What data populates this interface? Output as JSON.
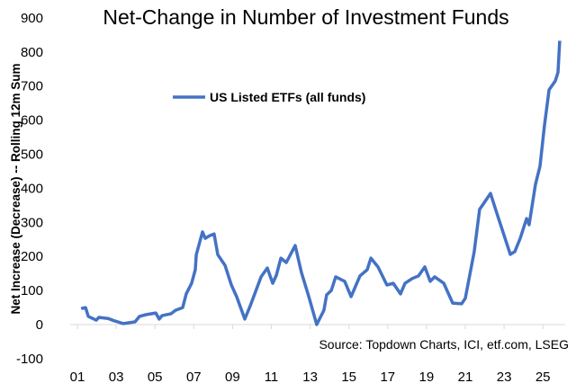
{
  "chart_data": {
    "type": "line",
    "title": "Net-Change in Number of Investment Funds",
    "ylabel": "Net Increase (Decrease) -- Rolling 12m Sum",
    "xlabel": "",
    "source": "Source: Topdown Charts, ICI, etf.com, LSEG",
    "ylim": [
      -100,
      900
    ],
    "yticks": [
      "-100",
      "0",
      "100",
      "200",
      "300",
      "400",
      "500",
      "600",
      "700",
      "800",
      "900"
    ],
    "xlim": [
      2001,
      2025.9
    ],
    "xtick_labels": [
      "01",
      "03",
      "05",
      "07",
      "09",
      "11",
      "13",
      "15",
      "17",
      "19",
      "21",
      "23",
      "25"
    ],
    "grid": false,
    "legend_placement": "top-left",
    "color": "#4472C4",
    "series": [
      {
        "name": "US Listed ETFs (all funds)",
        "x": [
          2001.19,
          2001.42,
          2001.56,
          2001.97,
          2002.11,
          2002.58,
          2002.9,
          2003.37,
          2003.97,
          2004.2,
          2004.53,
          2005.04,
          2005.22,
          2005.36,
          2005.83,
          2006.06,
          2006.43,
          2006.61,
          2006.89,
          2007.08,
          2007.13,
          2007.45,
          2007.59,
          2007.82,
          2008.05,
          2008.24,
          2008.61,
          2008.94,
          2009.21,
          2009.63,
          2009.91,
          2010.47,
          2010.79,
          2011.07,
          2011.26,
          2011.49,
          2011.77,
          2012.23,
          2012.55,
          2012.93,
          2013.34,
          2013.71,
          2013.85,
          2014.09,
          2014.32,
          2014.78,
          2015.11,
          2015.57,
          2015.94,
          2016.13,
          2016.5,
          2016.96,
          2017.29,
          2017.66,
          2017.89,
          2018.26,
          2018.59,
          2018.91,
          2019.19,
          2019.42,
          2019.89,
          2020.35,
          2020.81,
          2021.0,
          2021.46,
          2021.74,
          2022.3,
          2022.67,
          2023.32,
          2023.55,
          2023.83,
          2024.16,
          2024.29,
          2024.62,
          2024.85,
          2025.08,
          2025.32,
          2025.64,
          2025.78,
          2025.87
        ],
        "values": [
          47,
          50,
          24,
          13,
          21,
          18,
          11,
          3,
          8,
          24,
          29,
          34,
          16,
          26,
          32,
          42,
          50,
          90,
          121,
          161,
          205,
          272,
          253,
          261,
          266,
          205,
          174,
          116,
          82,
          16,
          55,
          140,
          166,
          121,
          145,
          195,
          182,
          232,
          153,
          82,
          0,
          42,
          87,
          100,
          140,
          127,
          82,
          143,
          161,
          195,
          169,
          116,
          121,
          90,
          121,
          135,
          143,
          169,
          127,
          140,
          121,
          63,
          61,
          77,
          214,
          338,
          385,
          319,
          206,
          214,
          253,
          311,
          293,
          412,
          465,
          583,
          689,
          715,
          740,
          833
        ]
      }
    ]
  }
}
